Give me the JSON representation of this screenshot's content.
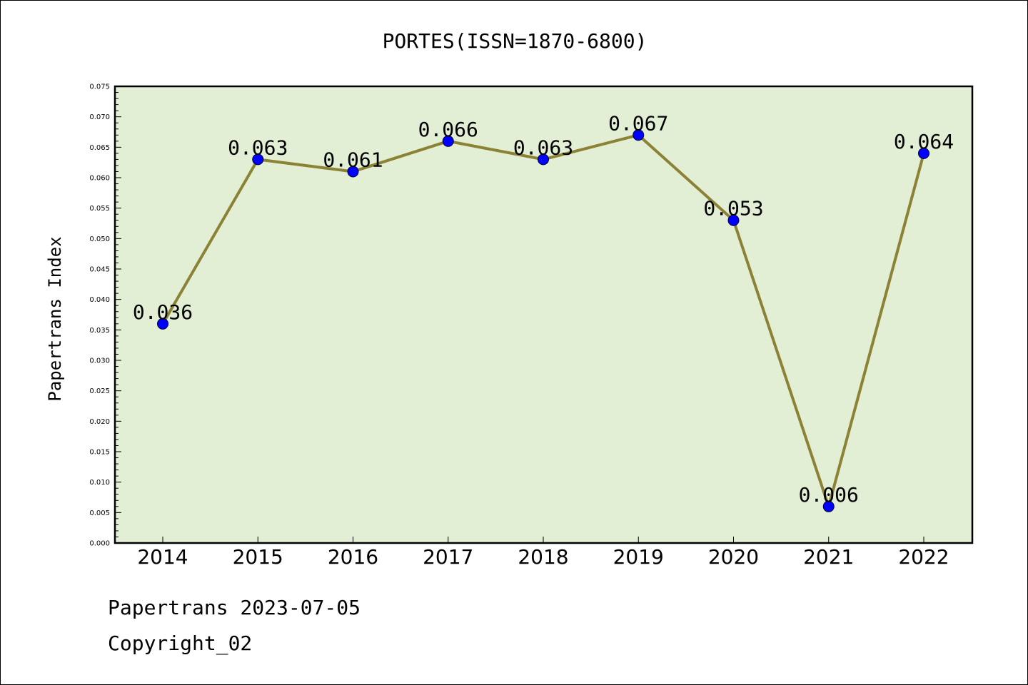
{
  "chart_data": {
    "type": "line",
    "title": "PORTES(ISSN=1870-6800)",
    "xlabel": "",
    "ylabel": "Papertrans Index",
    "categories": [
      "2014",
      "2015",
      "2016",
      "2017",
      "2018",
      "2019",
      "2020",
      "2021",
      "2022"
    ],
    "values": [
      0.036,
      0.063,
      0.061,
      0.066,
      0.063,
      0.067,
      0.053,
      0.006,
      0.064
    ],
    "data_labels": [
      "0.036",
      "0.063",
      "0.061",
      "0.066",
      "0.063",
      "0.067",
      "0.053",
      "0.006",
      "0.064"
    ],
    "ylim": [
      0,
      0.075
    ],
    "yticks": [
      "0.000",
      "0.005",
      "0.010",
      "0.015",
      "0.020",
      "0.025",
      "0.030",
      "0.035",
      "0.040",
      "0.045",
      "0.050",
      "0.055",
      "0.060",
      "0.065",
      "0.070",
      "0.075"
    ],
    "grid": false,
    "legend": "none",
    "colors": {
      "plot_background": "#e2efd5",
      "line": "#8b8236",
      "marker": "#0000ff"
    }
  },
  "footer": {
    "line1": "Papertrans 2023-07-05",
    "line2": "Copyright_02"
  }
}
